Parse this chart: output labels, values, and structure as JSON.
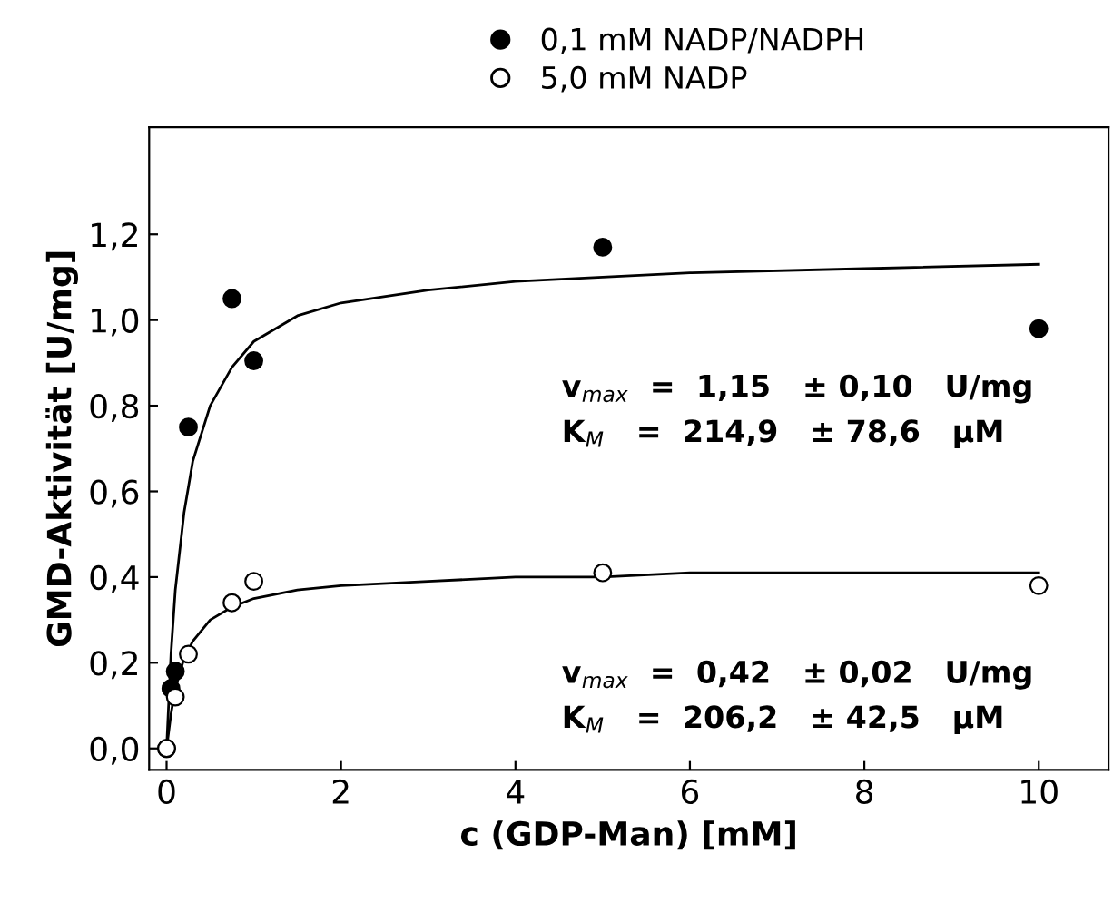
{
  "chart_data": {
    "type": "scatter",
    "xlabel": "c (GDP-Man) [mM]",
    "ylabel": "GMD-Aktivität [U/mg]",
    "xlim": [
      -0.2,
      10.8
    ],
    "ylim": [
      -0.05,
      1.45
    ],
    "xticks": [
      0,
      2,
      4,
      6,
      8,
      10
    ],
    "yticks": [
      {
        "value": 0,
        "label": "0,0"
      },
      {
        "value": 0.2,
        "label": "0,2"
      },
      {
        "value": 0.4,
        "label": "0,4"
      },
      {
        "value": 0.6,
        "label": "0,6"
      },
      {
        "value": 0.8,
        "label": "0,8"
      },
      {
        "value": 1.0,
        "label": "1,0"
      },
      {
        "value": 1.2,
        "label": "1,2"
      }
    ],
    "grid": false,
    "legend": "top",
    "series": [
      {
        "name": "0,1 mM NADP/NADPH",
        "marker": "circle",
        "color": "#000000",
        "x": [
          0,
          0.05,
          0.1,
          0.25,
          0.75,
          1,
          5,
          10
        ],
        "values": [
          0,
          0.14,
          0.18,
          0.75,
          1.05,
          0.905,
          1.17,
          0.98
        ]
      },
      {
        "name": "5,0 mM NADP",
        "marker": "circle",
        "color": "#ffffff",
        "x": [
          0,
          0.1,
          0.25,
          0.75,
          1,
          5,
          10
        ],
        "values": [
          0,
          0.12,
          0.22,
          0.34,
          0.39,
          0.41,
          0.38
        ]
      },
      {
        "type": "line",
        "color": "#000000",
        "x": [
          0,
          0.05,
          0.1,
          0.2,
          0.3,
          0.5,
          0.75,
          1,
          1.5,
          2,
          3,
          4,
          5,
          6,
          8,
          10
        ],
        "values": [
          0,
          0.22,
          0.37,
          0.55,
          0.67,
          0.8,
          0.89,
          0.95,
          1.01,
          1.04,
          1.07,
          1.09,
          1.1,
          1.11,
          1.12,
          1.13
        ]
      },
      {
        "type": "line",
        "color": "#000000",
        "x": [
          0,
          0.05,
          0.1,
          0.2,
          0.3,
          0.5,
          0.75,
          1,
          1.5,
          2,
          3,
          4,
          5,
          6,
          8,
          10
        ],
        "values": [
          0,
          0.08,
          0.14,
          0.21,
          0.25,
          0.3,
          0.33,
          0.35,
          0.37,
          0.38,
          0.39,
          0.4,
          0.4,
          0.41,
          0.41,
          0.41
        ]
      }
    ],
    "annotations": [
      "v$_{max}$  =  1,15   ± 0,10   U/mg",
      "K$_{M}$   =  214,9   ± 78,6   µM",
      "v$_{max}$  =  0,42   ± 0,02   U/mg",
      "K$_{M}$   =  206,2   ± 42,5   µM"
    ]
  }
}
